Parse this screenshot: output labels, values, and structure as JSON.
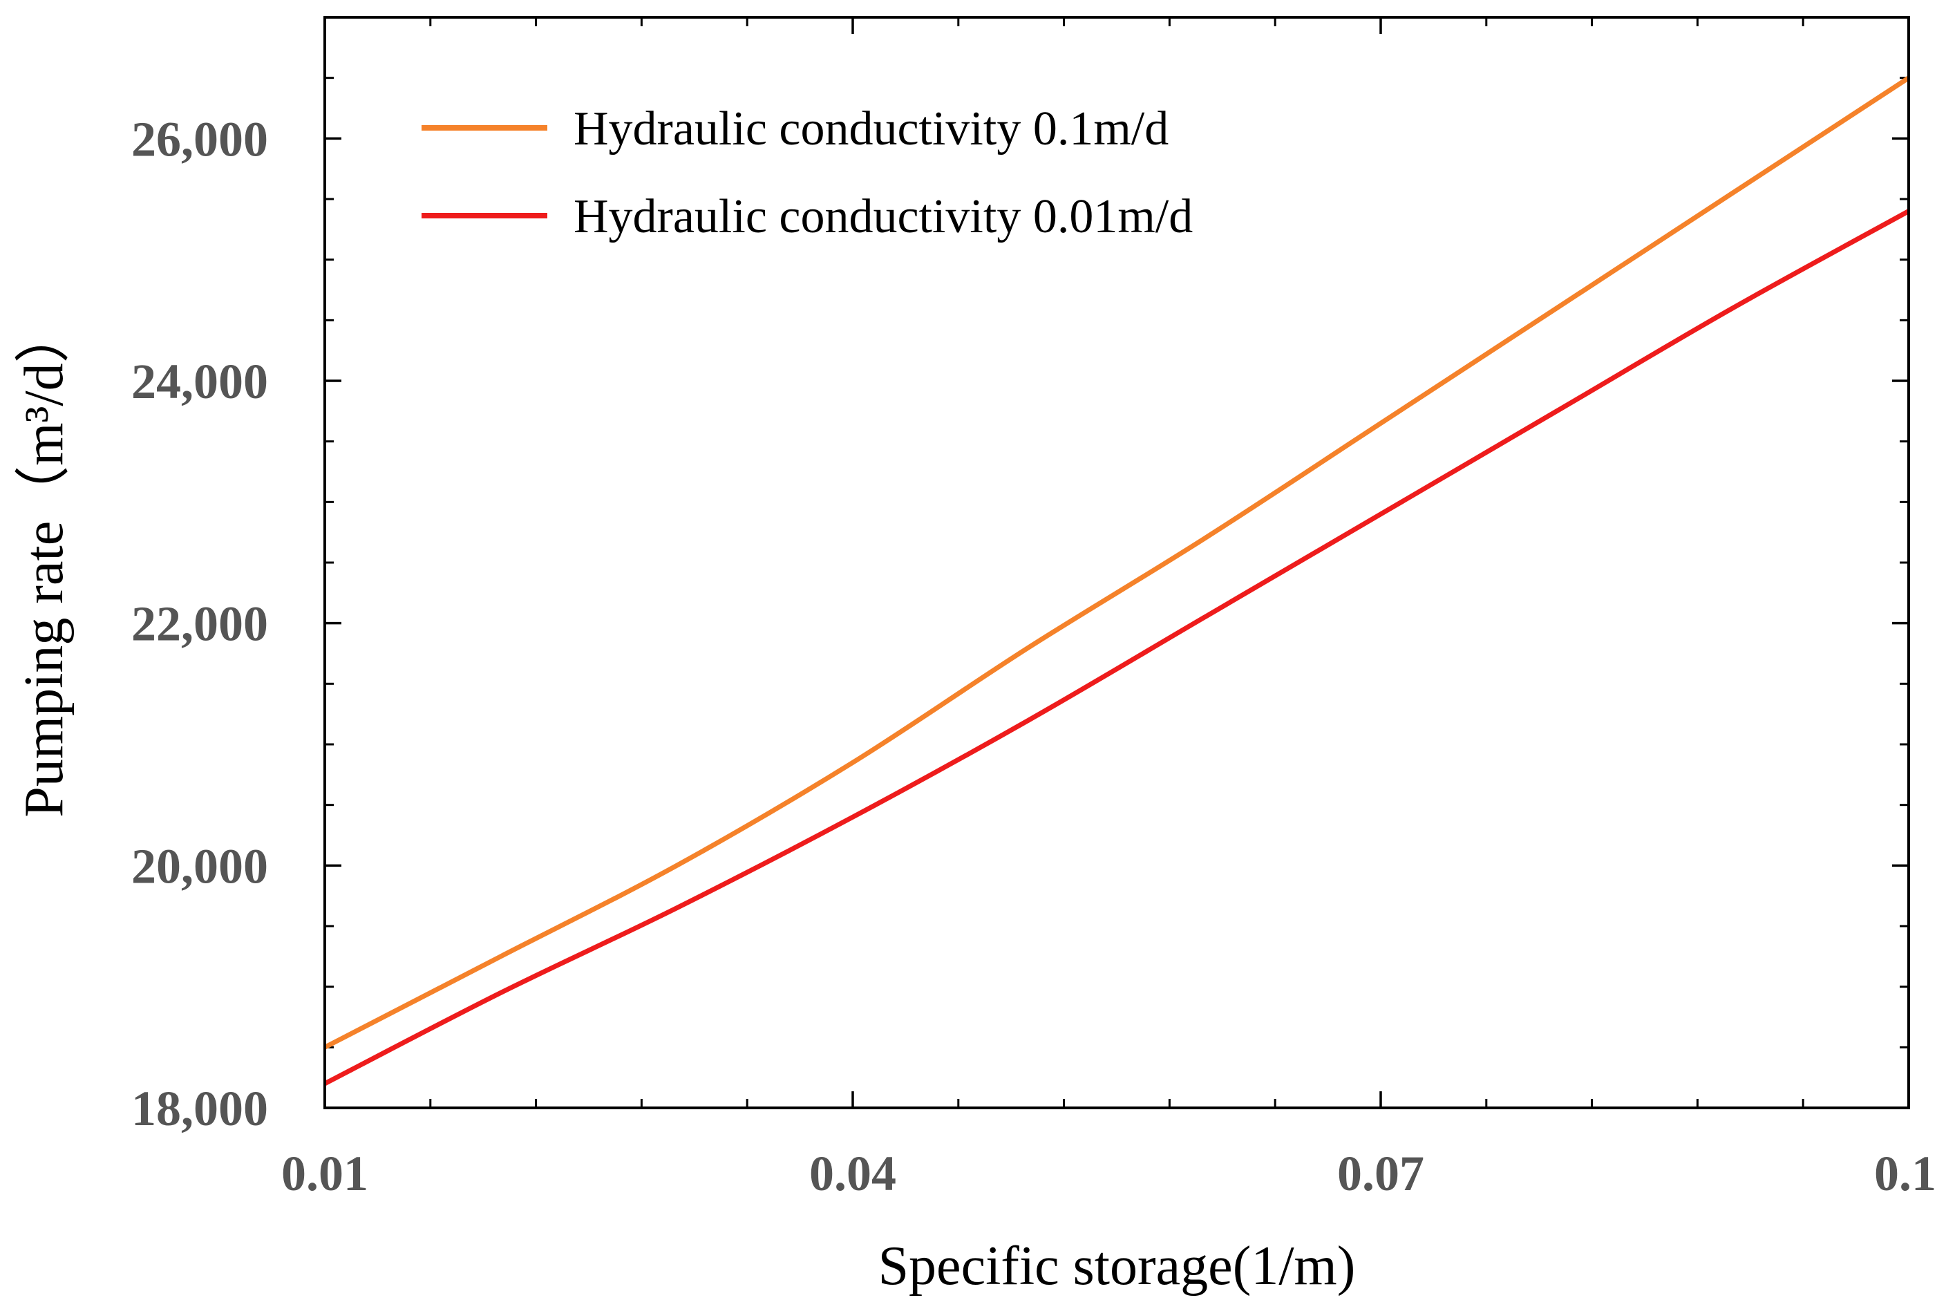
{
  "chart_data": {
    "type": "line",
    "title": "",
    "xlabel": "Specific storage(1/m)",
    "ylabel": "Pumping rate（m³/d）",
    "xlim": [
      0.01,
      0.1
    ],
    "ylim": [
      18000,
      27000
    ],
    "x_ticks": [
      0.01,
      0.04,
      0.07,
      0.1
    ],
    "x_tick_labels": [
      "0.01",
      "0.04",
      "0.07",
      "0.1"
    ],
    "y_ticks": [
      18000,
      20000,
      22000,
      24000,
      26000
    ],
    "y_tick_labels": [
      "18,000",
      "20,000",
      "22,000",
      "24,000",
      "26,000"
    ],
    "grid": false,
    "legend_position": "top-left",
    "series": [
      {
        "name": "Hydraulic conductivity 0.1m/d",
        "color": "#F5822A",
        "x": [
          0.01,
          0.02,
          0.03,
          0.04,
          0.05,
          0.06,
          0.07,
          0.08,
          0.09,
          0.1
        ],
        "y": [
          18500,
          19250,
          20000,
          20850,
          21800,
          22700,
          23650,
          24600,
          25550,
          26500
        ]
      },
      {
        "name": "Hydraulic conductivity 0.01m/d",
        "color": "#EE1C1C",
        "x": [
          0.01,
          0.02,
          0.03,
          0.04,
          0.05,
          0.06,
          0.07,
          0.08,
          0.09,
          0.1
        ],
        "y": [
          18200,
          18950,
          19650,
          20400,
          21200,
          22050,
          22900,
          23750,
          24600,
          25400
        ]
      }
    ]
  }
}
